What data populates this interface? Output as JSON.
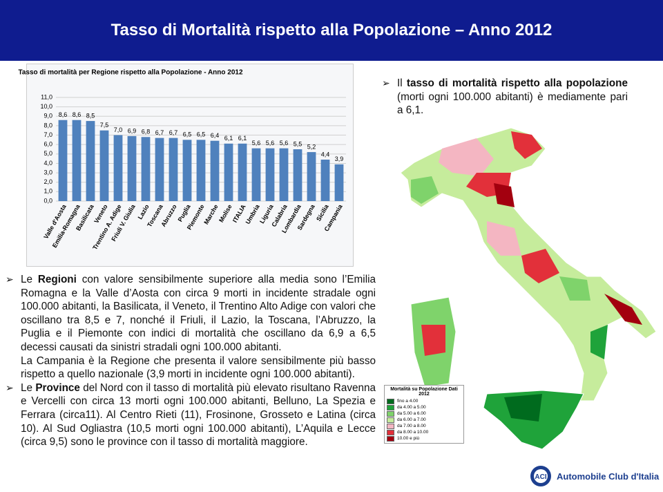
{
  "header": {
    "title": "Tasso di Mortalità rispetto alla Popolazione – Anno 2012"
  },
  "chart_data": {
    "type": "bar",
    "title": "Tasso di mortalità per Regione rispetto alla Popolazione - Anno 2012",
    "categories": [
      "Valle d'Aosta",
      "Emilia-Romagna",
      "Basilicata",
      "Veneto",
      "Trentino A. Adige",
      "Friuli V. Giulia",
      "Lazio",
      "Toscana",
      "Abruzzo",
      "Puglia",
      "Piemonte",
      "Marche",
      "Molise",
      "ITALIA",
      "Umbria",
      "Liguria",
      "Calabria",
      "Lombardia",
      "Sardegna",
      "Sicilia",
      "Campania"
    ],
    "values": [
      8.6,
      8.6,
      8.5,
      7.5,
      7.0,
      6.9,
      6.8,
      6.7,
      6.7,
      6.5,
      6.5,
      6.4,
      6.1,
      6.1,
      5.6,
      5.6,
      5.6,
      5.5,
      5.2,
      4.4,
      3.9
    ],
    "value_labels": [
      "8,6",
      "8,6",
      "8,5",
      "7,5",
      "7,0",
      "6,9",
      "6,8",
      "6,7",
      "6,7",
      "6,5",
      "6,5",
      "6,4",
      "6,1",
      "6,1",
      "5,6",
      "5,6",
      "5,6",
      "5,5",
      "5,2",
      "4,4",
      "3,9"
    ],
    "color": "#4f81bd",
    "ylim": [
      0,
      11
    ],
    "yticks": [
      {
        "value": 0,
        "label": "0,0"
      },
      {
        "value": 1,
        "label": "1,0"
      },
      {
        "value": 2,
        "label": "2,0"
      },
      {
        "value": 3,
        "label": "3,0"
      },
      {
        "value": 4,
        "label": "4,0"
      },
      {
        "value": 5,
        "label": "5,0"
      },
      {
        "value": 6,
        "label": "6,0"
      },
      {
        "value": 7,
        "label": "7,0"
      },
      {
        "value": 8,
        "label": "8,0"
      },
      {
        "value": 9,
        "label": "9,0"
      },
      {
        "value": 10,
        "label": "10,0"
      },
      {
        "value": 11,
        "label": "11,0"
      }
    ],
    "grid": true
  },
  "intro": {
    "bullet": true,
    "runs": [
      {
        "text": "Il "
      },
      {
        "text": "tasso di mortalità rispetto alla popolazione",
        "bold": true
      },
      {
        "text": " (morti ogni 100.000 abitanti) è mediamente pari a 6,1."
      }
    ]
  },
  "paragraphs": [
    {
      "bullet": true,
      "runs": [
        {
          "text": "Le "
        },
        {
          "text": "Regioni",
          "bold": true
        },
        {
          "text": " con valore sensibilmente superiore alla media sono l’Emilia Romagna e la Valle d’Aosta con circa 9 morti in incidente stradale ogni 100.000 abitanti, la Basilicata, il Veneto, il Trentino Alto Adige con valori che oscillano tra 8,5 e 7, nonché il Friuli, il Lazio, la Toscana, l’Abruzzo, la Puglia e il Piemonte con indici di mortalità che oscillano da 6,9 a 6,5 decessi causati da sinistri stradali ogni 100.000 abitanti."
        }
      ]
    },
    {
      "bullet": false,
      "runs": [
        {
          "text": "La Campania è la Regione che presenta il valore sensibilmente più basso rispetto a quello nazionale (3,9 morti in incidente ogni 100.000 abitanti)."
        }
      ]
    },
    {
      "bullet": true,
      "runs": [
        {
          "text": "Le "
        },
        {
          "text": "Province",
          "bold": true
        },
        {
          "text": " del Nord con il tasso di mortalità più elevato risultano Ravenna e Vercelli con circa 13 morti ogni 100.000 abitanti, Belluno, La Spezia e Ferrara (circa11). Al Centro Rieti (11), Frosinone, Grosseto e Latina (circa 10). Al Sud Ogliastra (10,5 morti ogni 100.000 abitanti), L’Aquila e Lecce (circa 9,5) sono le province con il tasso di mortalità maggiore."
        }
      ]
    }
  ],
  "map_legend": {
    "title": "Mortalità su Popolazione Dati 2012",
    "items": [
      {
        "label": "fino a 4.00",
        "color": "#006b1e"
      },
      {
        "label": "da 4.00 a 5.00",
        "color": "#1fa33a"
      },
      {
        "label": "da 5.00 a 6.00",
        "color": "#7fd36b"
      },
      {
        "label": "da 6.00 a 7.00",
        "color": "#c6ec9c"
      },
      {
        "label": "da 7.00 a 8.00",
        "color": "#f4b6c2"
      },
      {
        "label": "da 8.00 a 10.00",
        "color": "#e2303a"
      },
      {
        "label": "10.00 e più",
        "color": "#a3000f"
      }
    ]
  },
  "logo": {
    "text": "Automobile Club d'Italia"
  }
}
